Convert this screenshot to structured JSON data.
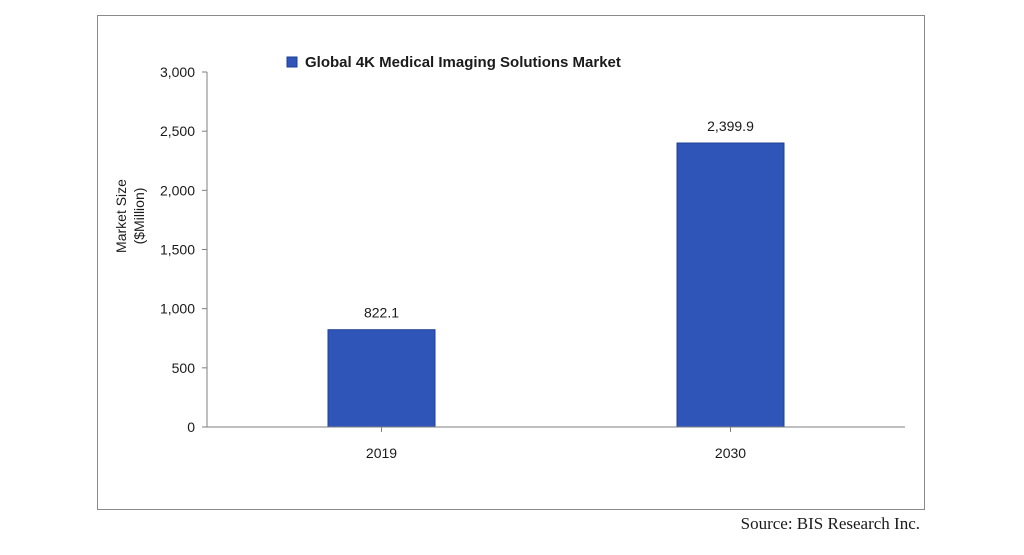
{
  "chart_data": {
    "type": "bar",
    "categories": [
      "2019",
      "2030"
    ],
    "series": [
      {
        "name": "Global 4K Medical Imaging Solutions Market",
        "values": [
          822.1,
          2399.9
        ]
      }
    ],
    "data_labels": [
      "822.1",
      "2,399.9"
    ],
    "ylabel_lines": [
      "Market Size",
      "($Million)"
    ],
    "xlabel": "",
    "ylim": [
      0,
      3000
    ],
    "yticks": [
      0,
      500,
      1000,
      1500,
      2000,
      2500,
      3000
    ],
    "ytick_labels": [
      "0",
      "500",
      "1,000",
      "1,500",
      "2,000",
      "2,500",
      "3,000"
    ],
    "grid": false,
    "legend_position": "top",
    "colors": {
      "bar": "#2f55b8",
      "bar_edge": "#1f3f95",
      "axis": "#7f7f7f",
      "text": "#1a1a1a"
    }
  },
  "source_note": "Source: BIS Research Inc."
}
